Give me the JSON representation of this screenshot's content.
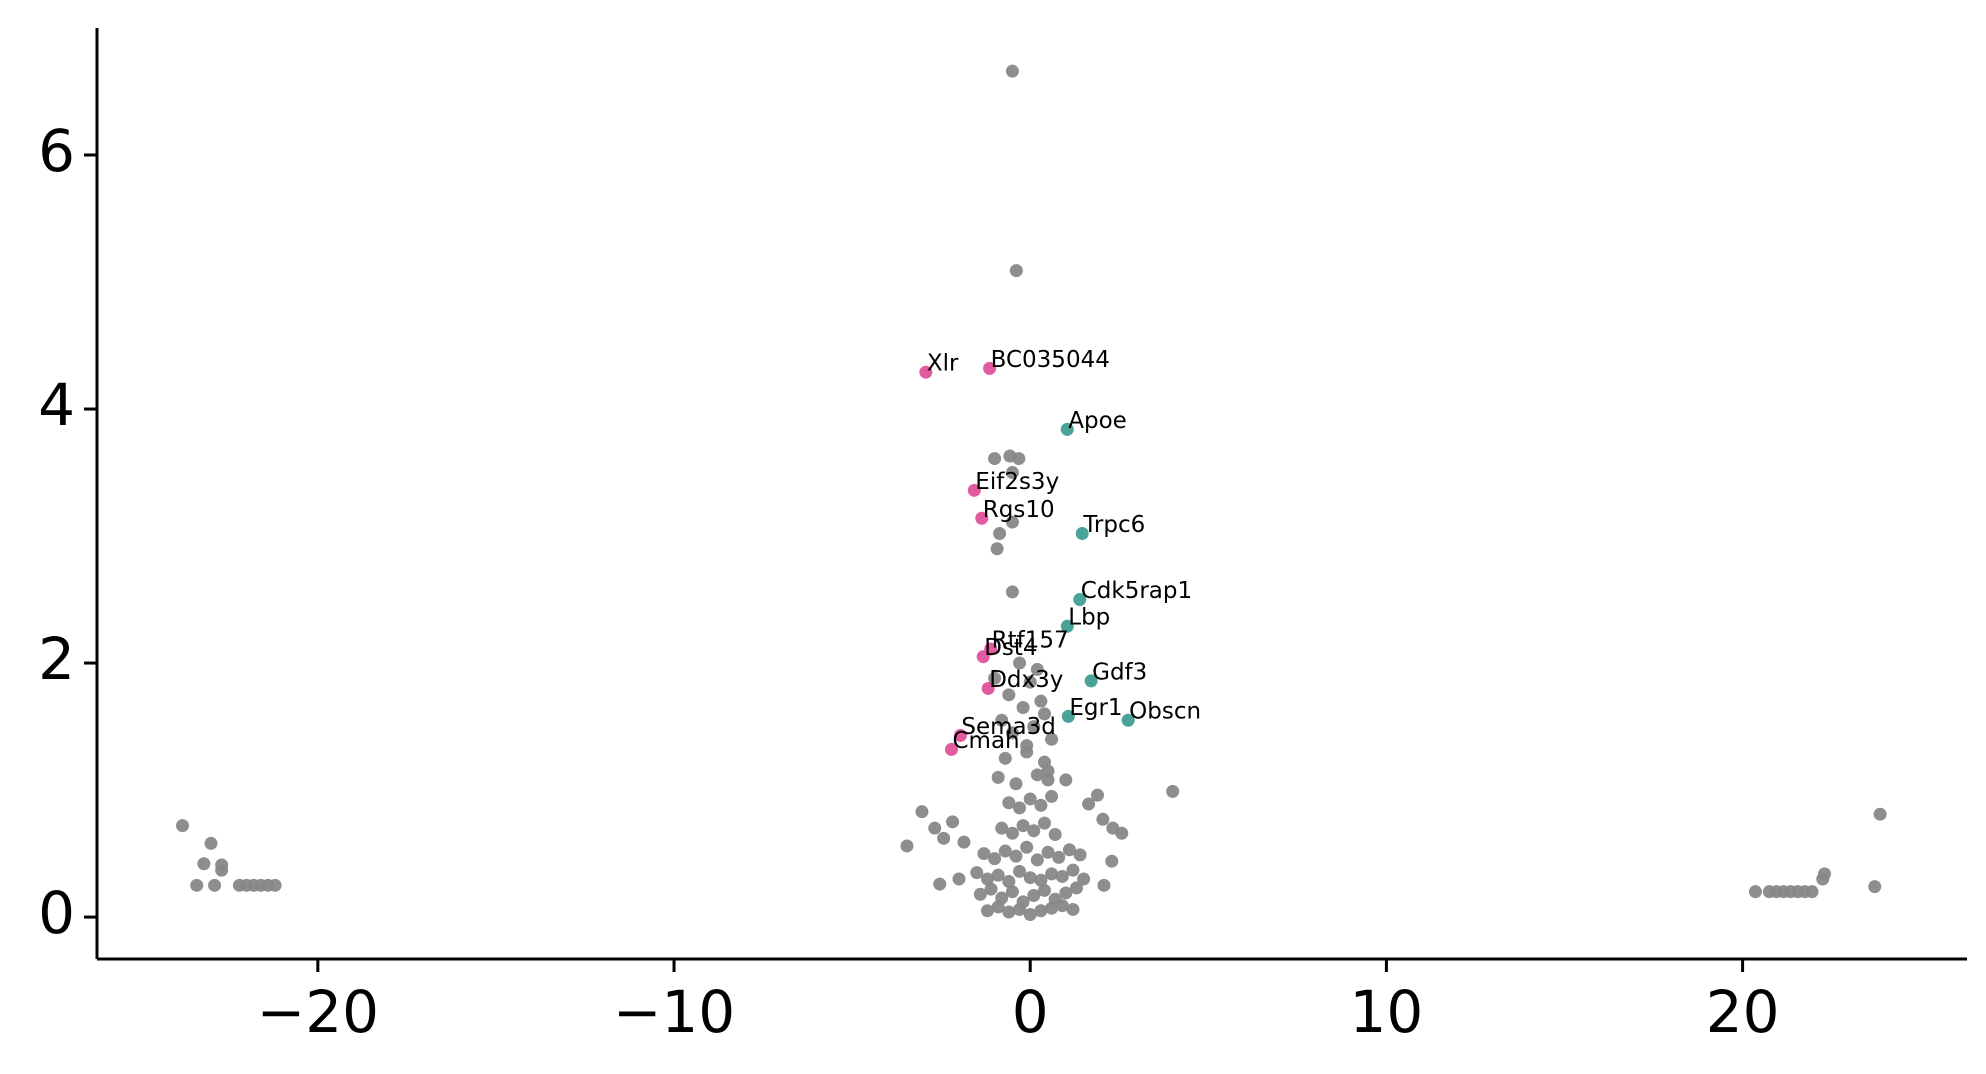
{
  "chart_data": {
    "type": "scatter",
    "xlim": [
      -26.2,
      26.3
    ],
    "ylim": [
      -0.33,
      7.0
    ],
    "xticks": [
      {
        "value": -20,
        "label": "−20"
      },
      {
        "value": -10,
        "label": "−10"
      },
      0,
      10,
      20
    ],
    "yticks": [
      0,
      2,
      4,
      6
    ],
    "grid": false,
    "series": [
      {
        "color": "#888888",
        "x": [
          -0.5,
          -0.39,
          -1.0,
          -0.57,
          -0.32,
          -0.5,
          -0.86,
          -0.5,
          -0.93,
          -0.5,
          4.0,
          23.86,
          23.71,
          22.3,
          22.25,
          20.36,
          20.75,
          20.95,
          21.15,
          21.35,
          21.55,
          21.75,
          21.95,
          -23.8,
          -23.0,
          -23.2,
          -22.7,
          -22.7,
          -23.4,
          -22.9,
          -22.2,
          -22.0,
          -21.8,
          -21.6,
          -21.4,
          -21.2,
          -3.46,
          -3.04,
          -2.68,
          -2.43,
          -2.18,
          -2.54,
          -1.86,
          -2.0,
          1.89,
          1.64,
          2.04,
          2.32,
          2.57,
          2.29,
          2.07,
          1.0,
          -1.2,
          -0.9,
          -0.6,
          -0.3,
          0.0,
          0.3,
          0.6,
          0.9,
          1.2,
          -1.4,
          -1.1,
          -0.8,
          -0.5,
          -0.2,
          0.1,
          0.4,
          0.7,
          1.0,
          1.3,
          -1.5,
          -1.2,
          -0.9,
          -0.6,
          -0.3,
          0.0,
          0.3,
          0.6,
          0.9,
          1.2,
          1.5,
          -1.3,
          -1.0,
          -0.7,
          -0.4,
          -0.1,
          0.2,
          0.5,
          0.8,
          1.1,
          1.4,
          -0.8,
          -0.5,
          -0.2,
          0.1,
          0.4,
          0.7,
          -0.6,
          -0.3,
          0.0,
          0.3,
          0.6,
          -0.9,
          -0.4,
          0.2,
          0.5,
          -0.7,
          -0.1,
          0.4,
          -0.5,
          0.1,
          0.6,
          -0.2,
          0.3,
          -1.0,
          -0.6,
          0.0,
          0.4,
          -0.3,
          0.2,
          -0.8,
          -0.1,
          0.5
        ],
        "y": [
          6.66,
          5.09,
          3.61,
          3.63,
          3.61,
          3.5,
          3.02,
          3.11,
          2.9,
          2.56,
          0.99,
          0.81,
          0.24,
          0.34,
          0.3,
          0.2,
          0.2,
          0.2,
          0.2,
          0.2,
          0.2,
          0.2,
          0.2,
          0.72,
          0.58,
          0.42,
          0.41,
          0.37,
          0.25,
          0.25,
          0.25,
          0.25,
          0.25,
          0.25,
          0.25,
          0.25,
          0.56,
          0.83,
          0.7,
          0.62,
          0.75,
          0.26,
          0.59,
          0.3,
          0.96,
          0.89,
          0.77,
          0.7,
          0.66,
          0.44,
          0.25,
          1.08,
          0.05,
          0.08,
          0.04,
          0.06,
          0.02,
          0.05,
          0.07,
          0.09,
          0.06,
          0.18,
          0.22,
          0.15,
          0.2,
          0.12,
          0.17,
          0.21,
          0.14,
          0.19,
          0.23,
          0.35,
          0.3,
          0.33,
          0.28,
          0.36,
          0.31,
          0.29,
          0.34,
          0.32,
          0.37,
          0.3,
          0.5,
          0.46,
          0.52,
          0.48,
          0.55,
          0.45,
          0.51,
          0.47,
          0.53,
          0.49,
          0.7,
          0.66,
          0.72,
          0.68,
          0.74,
          0.65,
          0.9,
          0.86,
          0.93,
          0.88,
          0.95,
          1.1,
          1.05,
          1.12,
          1.08,
          1.25,
          1.3,
          1.22,
          1.45,
          1.5,
          1.4,
          1.65,
          1.7,
          1.88,
          1.75,
          1.85,
          1.6,
          2.0,
          1.95,
          1.55,
          1.35,
          1.15
        ]
      },
      {
        "color": "#e0519b",
        "x": [
          -2.93,
          -1.14,
          -1.57,
          -1.36,
          -1.32,
          -1.11,
          -1.18,
          -1.96,
          -2.21
        ],
        "y": [
          4.29,
          4.32,
          3.36,
          3.14,
          2.05,
          2.11,
          1.8,
          1.43,
          1.32
        ],
        "labels": [
          "Xlr",
          "BC035044",
          "Eif2s3y",
          "Rgs10",
          "Dst4",
          "Rtf157",
          "Ddx3y",
          "Sema3d",
          "Cmah"
        ]
      },
      {
        "color": "#3f9e94",
        "x": [
          1.04,
          1.46,
          1.39,
          1.04,
          1.71,
          1.07,
          2.75
        ],
        "y": [
          3.84,
          3.02,
          2.5,
          2.29,
          1.86,
          1.58,
          1.55
        ],
        "labels": [
          "Apoe",
          "Trpc6",
          "Cdk5rap1",
          "Lbp",
          "Gdf3",
          "Egr1",
          "Obscn"
        ]
      }
    ]
  }
}
